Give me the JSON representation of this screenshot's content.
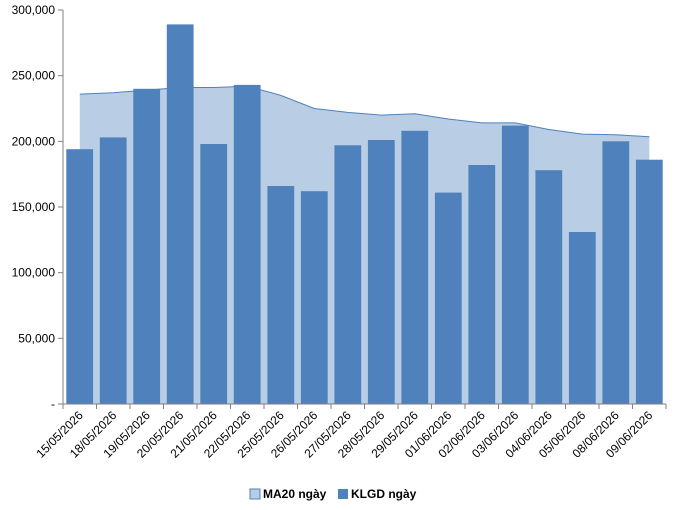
{
  "chart_data": {
    "type": "bar",
    "categories": [
      "15/05/2026",
      "18/05/2026",
      "19/05/2026",
      "20/05/2026",
      "21/05/2026",
      "22/05/2026",
      "25/05/2026",
      "26/05/2026",
      "27/05/2026",
      "28/05/2026",
      "29/05/2026",
      "01/06/2026",
      "02/06/2026",
      "03/06/2026",
      "04/06/2026",
      "05/06/2026",
      "08/06/2026",
      "09/06/2026"
    ],
    "series": [
      {
        "name": "MA20 ngày",
        "kind": "area",
        "color": "#b9cde5",
        "stroke": "#4f81bd",
        "values": [
          236000,
          237000,
          239000,
          241000,
          241000,
          242000,
          235000,
          225000,
          222000,
          220000,
          221000,
          217000,
          214000,
          214000,
          209000,
          205500,
          205000,
          203500
        ]
      },
      {
        "name": "KLGD ngày",
        "kind": "bar",
        "color": "#4f81bd",
        "values": [
          194000,
          203000,
          240000,
          289000,
          198000,
          243000,
          166000,
          162000,
          197000,
          201000,
          208000,
          161000,
          182000,
          212000,
          178000,
          131000,
          200000,
          186000
        ]
      }
    ],
    "y_ticks": [
      "-",
      "50,000",
      "100,000",
      "150,000",
      "200,000",
      "250,000",
      "300,000"
    ],
    "ylim": [
      0,
      300000
    ],
    "grid": false,
    "legend_position": "bottom"
  }
}
